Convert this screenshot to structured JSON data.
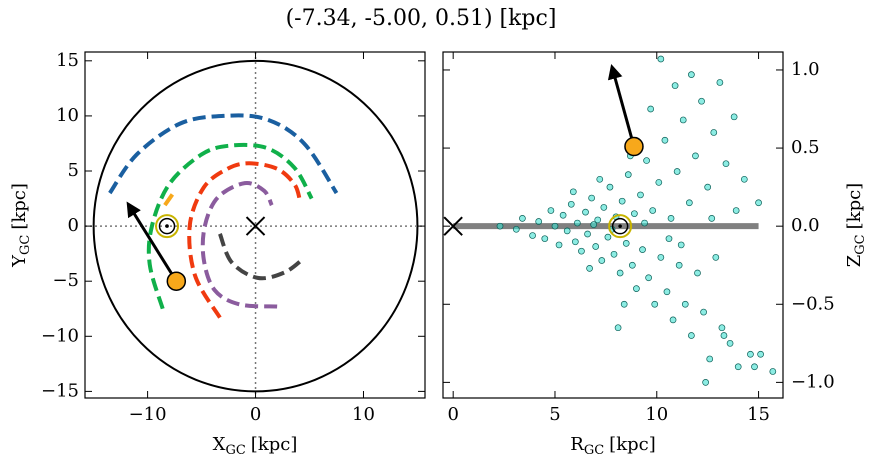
{
  "title": "(-7.34, -5.00, 0.51) [kpc]",
  "chart_data": [
    {
      "type": "line",
      "xlabel": {
        "main": "X",
        "sub": "GC",
        "unit": "[kpc]"
      },
      "ylabel": {
        "main": "Y",
        "sub": "GC",
        "unit": "[kpc]"
      },
      "xlim": [
        -15.8,
        15.7
      ],
      "ylim": [
        -15.6,
        15.8
      ],
      "xticks": [
        {
          "value": -10,
          "label": "−10"
        },
        0,
        10
      ],
      "yticks": [
        {
          "value": -15,
          "label": "−15"
        },
        {
          "value": -10,
          "label": "−10"
        },
        {
          "value": -5,
          "label": "−5"
        },
        0,
        5,
        10,
        15
      ],
      "yaxis_side": "left",
      "boundary_radius": 15,
      "reference_lines": {
        "x": 0,
        "y": 0
      },
      "series": [
        {
          "color": "#1a5fa0",
          "linestyle": "dashed",
          "x": [
            -13.5,
            -11,
            -7,
            -3,
            1,
            4.5,
            7.5
          ],
          "y": [
            3,
            6.5,
            9.3,
            10,
            9.7,
            7.5,
            3
          ]
        },
        {
          "color": "#10b04a",
          "linestyle": "dashed",
          "x": [
            -8.6,
            -9.8,
            -9.6,
            -8,
            -5,
            -2.4,
            1,
            3.6,
            5.2
          ],
          "y": [
            -7.5,
            -3.5,
            0,
            3.8,
            6.5,
            7.3,
            7.1,
            5.3,
            2.5
          ]
        },
        {
          "color": "#f03a10",
          "linestyle": "dashed",
          "x": [
            -3.3,
            -5.6,
            -6.1,
            -4.8,
            -2.6,
            -0.6,
            2,
            3.6,
            4.1
          ],
          "y": [
            -8.3,
            -4.5,
            0,
            3.5,
            5.2,
            5.7,
            5.2,
            3.8,
            2.4
          ]
        },
        {
          "color": "#8b5c9e",
          "linestyle": "dashed",
          "x": [
            2,
            -1.5,
            -3.8,
            -4.8,
            -4.7,
            -3.5,
            -1,
            0.8,
            1.5
          ],
          "y": [
            -7.3,
            -7.1,
            -5.8,
            -3,
            0,
            2.6,
            3.9,
            3.2,
            1.9
          ]
        },
        {
          "color": "#444444",
          "linestyle": "dashed",
          "x": [
            -3.3,
            -2.2,
            0.2,
            2.7,
            4.5
          ],
          "y": [
            -0.7,
            -3.3,
            -4.7,
            -4.2,
            -2.9
          ]
        },
        {
          "color": "#f7a81b",
          "linestyle": "dashed",
          "x": [
            -8.4,
            -7.4
          ],
          "y": [
            1.9,
            3.3
          ]
        }
      ],
      "sun": {
        "x": -8.2,
        "y": 0
      },
      "target": {
        "x": -7.34,
        "y": -5.0,
        "color": "#f7a81b"
      },
      "arrow_tip": {
        "x": -11.8,
        "y": 2.0
      },
      "center": {
        "x": 0,
        "y": 0
      }
    },
    {
      "type": "scatter",
      "xlabel": {
        "main": "R",
        "sub": "GC",
        "unit": "[kpc]"
      },
      "ylabel": {
        "main": "Z",
        "sub": "GC",
        "unit": "[kpc]"
      },
      "xlim": [
        -0.5,
        16.2
      ],
      "ylim": [
        -1.1,
        1.115
      ],
      "xticks": [
        0,
        5,
        10,
        15
      ],
      "yticks": [
        {
          "value": -1.0,
          "label": "−1.0"
        },
        {
          "value": -0.5,
          "label": "−0.5"
        },
        {
          "value": 0.0,
          "label": "0.0"
        },
        {
          "value": 0.5,
          "label": "0.5"
        },
        {
          "value": 1.0,
          "label": "1.0"
        }
      ],
      "yaxis_side": "right",
      "color": "#40e0d0",
      "x": [
        2.3,
        3.1,
        3.4,
        3.9,
        4.2,
        4.5,
        4.8,
        5.0,
        5.2,
        5.4,
        5.6,
        5.8,
        6.0,
        6.1,
        6.3,
        6.5,
        6.6,
        6.8,
        7.0,
        7.1,
        7.3,
        7.4,
        7.6,
        7.7,
        7.9,
        8.0,
        8.2,
        8.3,
        8.5,
        8.6,
        8.8,
        8.9,
        9.0,
        9.2,
        9.3,
        9.5,
        9.6,
        9.8,
        9.9,
        10.1,
        10.2,
        10.4,
        10.5,
        10.7,
        10.8,
        11.0,
        11.1,
        11.3,
        11.4,
        11.6,
        11.7,
        11.9,
        12.0,
        12.2,
        12.3,
        12.5,
        12.6,
        12.8,
        12.9,
        13.1,
        13.2,
        13.4,
        13.6,
        13.8,
        14.0,
        14.3,
        14.6,
        15.0,
        15.1,
        15.7,
        10.2,
        11.7,
        8.1,
        7.2,
        6.7,
        5.9,
        12.4,
        13.3,
        9.7,
        10.9,
        8.7,
        8.4,
        11.2,
        9.4,
        7.8,
        6.9,
        12.7,
        13.9,
        10.6,
        14.8
      ],
      "y": [
        0.0,
        -0.02,
        0.05,
        -0.06,
        0.03,
        -0.08,
        0.1,
        0.0,
        -0.12,
        0.07,
        -0.03,
        0.14,
        -0.1,
        0.02,
        -0.16,
        0.09,
        -0.05,
        0.18,
        -0.13,
        0.04,
        -0.22,
        0.12,
        -0.07,
        0.25,
        -0.18,
        0.06,
        -0.3,
        0.16,
        -0.11,
        0.33,
        -0.25,
        0.08,
        -0.4,
        0.2,
        -0.15,
        0.42,
        -0.33,
        0.1,
        -0.5,
        0.28,
        -0.2,
        0.55,
        -0.42,
        0.05,
        -0.6,
        0.35,
        -0.25,
        0.68,
        -0.5,
        0.15,
        -0.7,
        0.45,
        -0.3,
        0.8,
        -0.55,
        0.25,
        -0.85,
        0.6,
        -0.2,
        0.92,
        -0.65,
        0.4,
        -0.75,
        0.7,
        -0.9,
        0.3,
        -0.82,
        0.15,
        -0.82,
        -0.93,
        1.07,
        0.97,
        -0.65,
        0.3,
        -0.27,
        0.22,
        -1.0,
        -0.7,
        0.75,
        0.9,
        0.45,
        -0.5,
        -0.12,
        0.02,
        -0.02,
        0.01,
        0.05,
        0.1,
        -0.08,
        -0.9
      ],
      "disk_line": {
        "x": [
          0,
          15
        ],
        "y": 0,
        "color": "#808080"
      },
      "sun": {
        "x": 8.2,
        "y": 0
      },
      "target": {
        "x": 8.88,
        "y": 0.51,
        "color": "#f7a81b"
      },
      "arrow_tip": {
        "x": 7.8,
        "y": 1.02
      },
      "center": {
        "x": 0,
        "y": 0
      }
    }
  ]
}
